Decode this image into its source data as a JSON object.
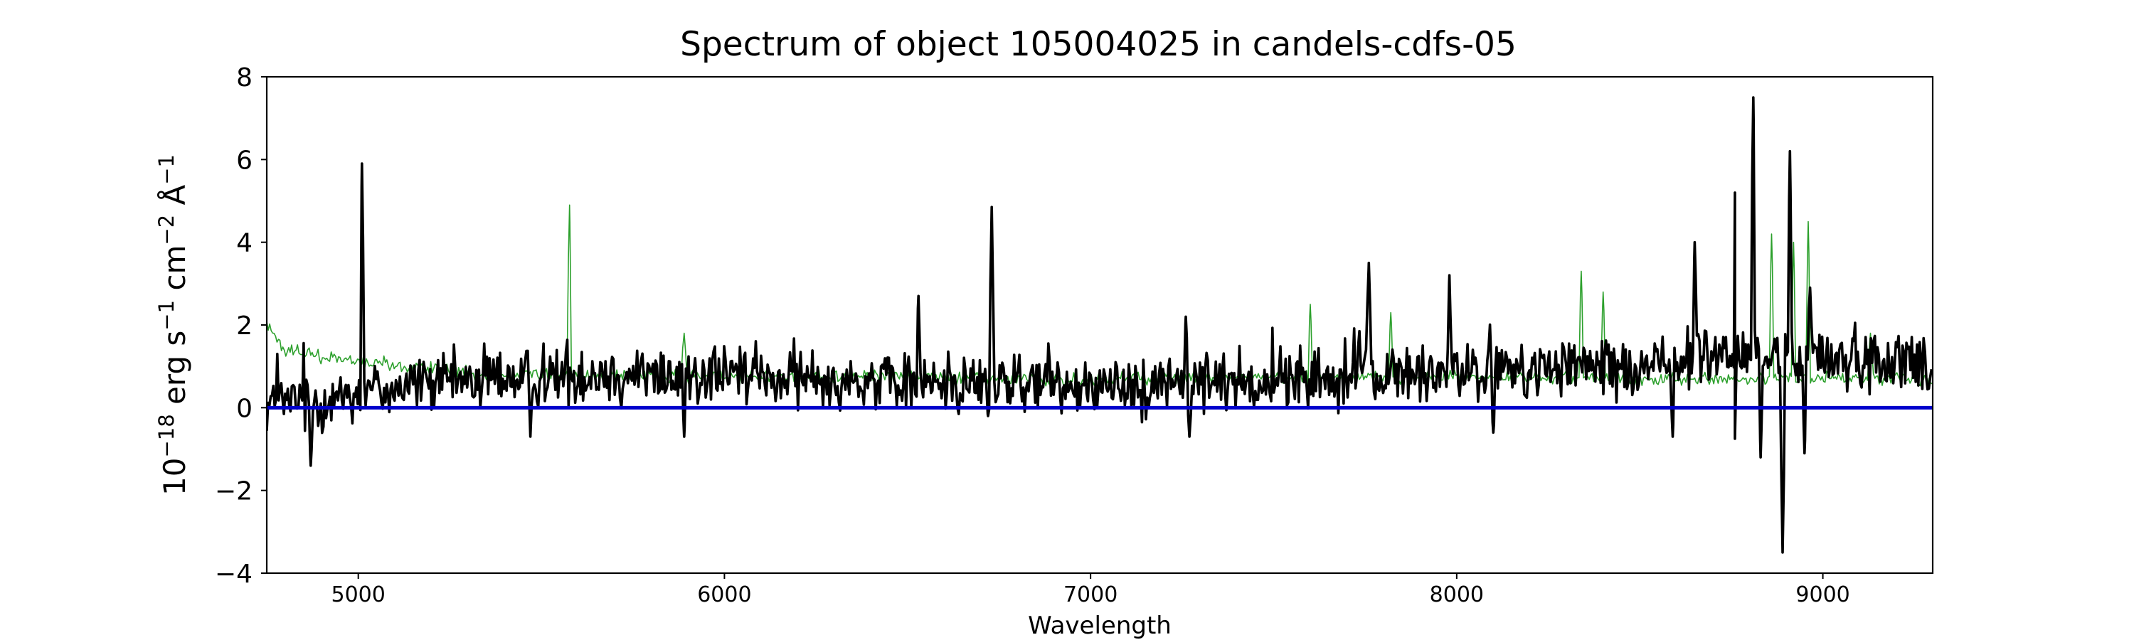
{
  "chart_data": {
    "type": "line",
    "title": "Spectrum of object 105004025 in candels-cdfs-05",
    "xlabel": "Wavelength",
    "ylabel_parts": [
      "10",
      "−18",
      " erg s",
      "−1",
      " cm",
      "−2",
      " Å",
      "−1"
    ],
    "xlim": [
      4750,
      9300
    ],
    "ylim": [
      -4,
      8
    ],
    "x_ticks": [
      5000,
      6000,
      7000,
      8000,
      9000
    ],
    "y_ticks": [
      -4,
      -2,
      0,
      2,
      4,
      6,
      8
    ],
    "colors": {
      "flux": "#000000",
      "error": "#2ca02c",
      "zero": "#0000cc"
    },
    "zero_line": 0,
    "series": [
      {
        "role": "flux",
        "noise_amplitude": 0.55,
        "continuum": [
          [
            4750,
            0.1
          ],
          [
            4900,
            0.2
          ],
          [
            5000,
            0.4
          ],
          [
            5200,
            0.6
          ],
          [
            5500,
            0.8
          ],
          [
            6000,
            0.8
          ],
          [
            6500,
            0.6
          ],
          [
            7000,
            0.55
          ],
          [
            7500,
            0.65
          ],
          [
            7800,
            0.8
          ],
          [
            8200,
            0.9
          ],
          [
            8500,
            1.0
          ],
          [
            8700,
            1.2
          ],
          [
            8800,
            1.3
          ],
          [
            9000,
            1.2
          ],
          [
            9300,
            1.1
          ]
        ],
        "spikes": [
          [
            5010,
            5.9
          ],
          [
            6530,
            2.7
          ],
          [
            6730,
            4.85
          ],
          [
            6720,
            -0.2
          ],
          [
            7260,
            2.2
          ],
          [
            7760,
            3.5
          ],
          [
            7980,
            3.2
          ],
          [
            8650,
            4.0
          ],
          [
            8760,
            5.2
          ],
          [
            8760,
            -0.75
          ],
          [
            8810,
            7.5
          ],
          [
            8830,
            -1.2
          ],
          [
            8890,
            -3.5
          ],
          [
            8910,
            6.2
          ],
          [
            8950,
            -1.1
          ],
          [
            8965,
            2.9
          ],
          [
            4870,
            -1.4
          ],
          [
            5470,
            -0.7
          ],
          [
            5890,
            -0.7
          ],
          [
            7270,
            -0.7
          ],
          [
            8100,
            -0.6
          ],
          [
            8590,
            -0.7
          ]
        ]
      },
      {
        "role": "error",
        "noise_amplitude": 0.12,
        "continuum": [
          [
            4750,
            2.0
          ],
          [
            4800,
            1.4
          ],
          [
            5000,
            1.1
          ],
          [
            5300,
            0.85
          ],
          [
            6000,
            0.75
          ],
          [
            6500,
            0.75
          ],
          [
            7000,
            0.7
          ],
          [
            7500,
            0.72
          ],
          [
            8000,
            0.75
          ],
          [
            8500,
            0.7
          ],
          [
            9000,
            0.7
          ],
          [
            9300,
            0.7
          ]
        ],
        "spikes": [
          [
            5577,
            4.9
          ],
          [
            5890,
            1.8
          ],
          [
            7600,
            2.5
          ],
          [
            7820,
            2.3
          ],
          [
            8340,
            3.3
          ],
          [
            8400,
            2.8
          ],
          [
            8860,
            4.2
          ],
          [
            8920,
            4.0
          ],
          [
            8960,
            4.5
          ],
          [
            9130,
            1.8
          ]
        ]
      }
    ]
  }
}
